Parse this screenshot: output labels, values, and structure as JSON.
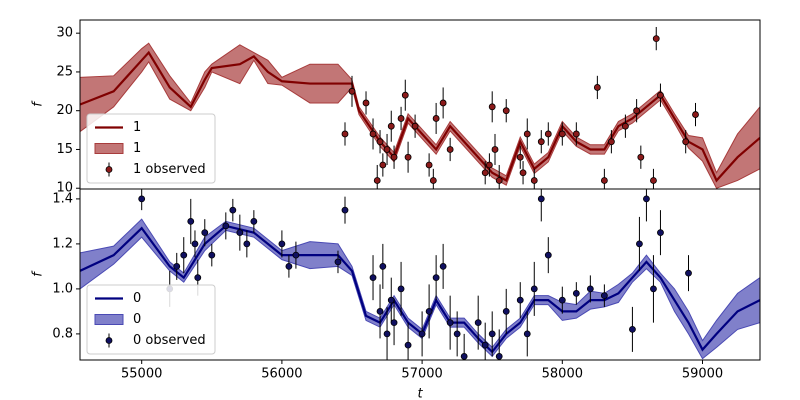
{
  "chart_data": [
    {
      "type": "line",
      "ylabel": "f",
      "legend": "lower left",
      "xlim": [
        54560,
        59410
      ],
      "ylim": [
        9.9,
        31.7
      ],
      "yticks": [
        10,
        15,
        20,
        25,
        30
      ],
      "x": [
        54560,
        54800,
        55000,
        55050,
        55200,
        55350,
        55450,
        55500,
        55700,
        55800,
        55900,
        56000,
        56200,
        56400,
        56500,
        56550,
        56700,
        56800,
        56900,
        57000,
        57100,
        57200,
        57300,
        57400,
        57500,
        57600,
        57700,
        57800,
        57900,
        58000,
        58100,
        58200,
        58300,
        58400,
        58500,
        58600,
        58700,
        58800,
        58900,
        59000,
        59100,
        59250,
        59410
      ],
      "series": [
        {
          "name": "1",
          "kind": "line",
          "color": "#800000",
          "values": [
            20.8,
            22.5,
            26.5,
            27.5,
            23,
            20.5,
            24,
            25.5,
            26,
            27,
            25,
            23.8,
            23.5,
            23.5,
            23.5,
            20,
            16,
            14,
            19,
            17,
            15,
            18,
            16,
            14,
            12,
            11,
            16,
            12.5,
            14,
            18,
            16,
            15,
            15,
            18,
            19,
            20.5,
            22,
            19,
            16,
            15,
            11,
            14,
            16.5
          ]
        },
        {
          "name": "1",
          "kind": "band",
          "color": "#a83c3c",
          "upper": [
            24.3,
            24.5,
            28,
            28.7,
            24.5,
            21,
            25,
            26,
            28.5,
            27.5,
            26.5,
            24.3,
            26,
            26,
            24,
            20.5,
            16.6,
            14.6,
            19.6,
            17.6,
            15.6,
            18.6,
            16.6,
            14.6,
            12.6,
            11.6,
            16.6,
            13.1,
            14.6,
            18.6,
            16.6,
            15.6,
            15.6,
            18.6,
            19.6,
            21.1,
            22.6,
            19.6,
            16.8,
            16.5,
            12,
            17,
            20.5
          ],
          "lower": [
            17.3,
            20.5,
            25,
            26.3,
            21.5,
            20,
            23,
            25,
            23.5,
            26.5,
            23.5,
            23.3,
            21,
            21,
            23,
            19.5,
            15.4,
            13.4,
            18.4,
            16.4,
            14.4,
            17.4,
            15.4,
            13.4,
            11.4,
            10.4,
            15.4,
            11.9,
            13.4,
            17.4,
            15.4,
            14.4,
            14.4,
            17.4,
            18.4,
            19.9,
            21.4,
            18.4,
            15.2,
            13.5,
            10,
            11,
            12.5
          ]
        },
        {
          "name": "1 observed",
          "kind": "errorbar",
          "color": "#8b1a1a",
          "x": [
            56450,
            56500,
            56600,
            56650,
            56680,
            56700,
            56720,
            56750,
            56780,
            56800,
            56850,
            56880,
            56900,
            56950,
            57050,
            57080,
            57100,
            57150,
            57200,
            57450,
            57480,
            57500,
            57520,
            57550,
            57600,
            57700,
            57720,
            57750,
            57800,
            57850,
            57900,
            58000,
            58100,
            58250,
            58300,
            58350,
            58450,
            58530,
            58560,
            58650,
            58670,
            58700,
            58880,
            58950
          ],
          "values": [
            17,
            22.5,
            21,
            17,
            11,
            16,
            13,
            15,
            18,
            14,
            19,
            22,
            14,
            18,
            13,
            11,
            19,
            21,
            15,
            12,
            13,
            20.5,
            15,
            11,
            20,
            14,
            12,
            17,
            11,
            16,
            17,
            17,
            17,
            23,
            11,
            16,
            18,
            20,
            14,
            11,
            29.3,
            22,
            16,
            19.5
          ],
          "errors": [
            1.5,
            2,
            1.5,
            2,
            2,
            1.5,
            1.5,
            2,
            2,
            1.5,
            1.5,
            2,
            2,
            1.5,
            1.5,
            1.5,
            2,
            2,
            1.5,
            1.5,
            1.5,
            2,
            2,
            2,
            1.5,
            1.5,
            1.5,
            2,
            1.5,
            1.5,
            1.5,
            1.5,
            1.5,
            1.5,
            1.5,
            1.5,
            1.5,
            1.5,
            1.5,
            1.5,
            1.5,
            1.5,
            1.5,
            1.5
          ]
        }
      ]
    },
    {
      "type": "line",
      "ylabel": "f",
      "xlabel": "t",
      "legend": "lower left",
      "xlim": [
        54560,
        59410
      ],
      "xticks": [
        55000,
        56000,
        57000,
        58000,
        59000
      ],
      "ylim": [
        0.684,
        1.444
      ],
      "yticks": [
        {
          "value": 0.8,
          "label": "0.8"
        },
        {
          "value": 1.0,
          "label": "1.0"
        },
        {
          "value": 1.2,
          "label": "1.2"
        },
        {
          "value": 1.4,
          "label": "1.4"
        }
      ],
      "x": [
        54560,
        54800,
        55000,
        55200,
        55300,
        55450,
        55600,
        55800,
        56000,
        56200,
        56400,
        56500,
        56600,
        56700,
        56800,
        56900,
        57000,
        57100,
        57200,
        57300,
        57400,
        57500,
        57600,
        57700,
        57800,
        57900,
        58000,
        58100,
        58200,
        58300,
        58400,
        58500,
        58600,
        58700,
        58800,
        58900,
        59000,
        59100,
        59250,
        59410
      ],
      "series": [
        {
          "name": "0",
          "kind": "line",
          "color": "#000080",
          "values": [
            1.08,
            1.15,
            1.27,
            1.1,
            1.05,
            1.2,
            1.28,
            1.25,
            1.15,
            1.15,
            1.15,
            1.08,
            0.88,
            0.85,
            0.95,
            0.85,
            0.8,
            0.95,
            0.85,
            0.85,
            0.78,
            0.72,
            0.8,
            0.85,
            0.95,
            0.95,
            0.9,
            0.9,
            0.95,
            0.95,
            0.98,
            1.05,
            1.12,
            1.05,
            0.95,
            0.85,
            0.73,
            0.8,
            0.9,
            0.95
          ]
        },
        {
          "name": "0",
          "kind": "band",
          "color": "#4a4ab4",
          "upper": [
            1.16,
            1.19,
            1.31,
            1.12,
            1.07,
            1.23,
            1.3,
            1.27,
            1.17,
            1.21,
            1.2,
            1.1,
            0.9,
            0.87,
            0.97,
            0.87,
            0.82,
            0.97,
            0.87,
            0.87,
            0.8,
            0.74,
            0.82,
            0.87,
            0.97,
            0.97,
            0.94,
            0.93,
            0.99,
            0.98,
            1.02,
            1.07,
            1.15,
            1.07,
            1.0,
            0.9,
            0.77,
            0.86,
            0.98,
            1.05
          ],
          "lower": [
            1.0,
            1.11,
            1.23,
            1.08,
            1.03,
            1.17,
            1.26,
            1.23,
            1.13,
            1.09,
            1.1,
            1.06,
            0.86,
            0.83,
            0.93,
            0.83,
            0.78,
            0.93,
            0.83,
            0.83,
            0.76,
            0.7,
            0.78,
            0.83,
            0.93,
            0.93,
            0.86,
            0.87,
            0.91,
            0.92,
            0.94,
            1.03,
            1.09,
            1.03,
            0.9,
            0.8,
            0.69,
            0.74,
            0.82,
            0.85
          ]
        },
        {
          "name": "0 observed",
          "kind": "errorbar",
          "color": "#101060",
          "x": [
            55000,
            55200,
            55250,
            55300,
            55350,
            55380,
            55400,
            55450,
            55500,
            55600,
            55650,
            55700,
            55750,
            55800,
            56000,
            56050,
            56100,
            56400,
            56450,
            56650,
            56700,
            56720,
            56750,
            56780,
            56800,
            56850,
            56900,
            57000,
            57050,
            57100,
            57150,
            57200,
            57250,
            57300,
            57400,
            57450,
            57500,
            57550,
            57600,
            57700,
            57750,
            57800,
            57850,
            57900,
            58000,
            58100,
            58200,
            58300,
            58500,
            58550,
            58600,
            58650,
            58700,
            58900
          ],
          "values": [
            1.4,
            1.0,
            1.1,
            1.15,
            1.3,
            1.2,
            1.05,
            1.25,
            1.15,
            1.28,
            1.35,
            1.25,
            1.2,
            1.3,
            1.2,
            1.1,
            1.15,
            1.12,
            1.35,
            1.05,
            0.9,
            1.1,
            0.8,
            0.95,
            0.85,
            1.0,
            0.75,
            0.8,
            0.9,
            1.05,
            1.1,
            0.85,
            0.8,
            0.7,
            0.85,
            0.75,
            0.8,
            0.7,
            0.9,
            0.95,
            0.8,
            1.0,
            1.4,
            1.15,
            0.95,
            0.98,
            1.0,
            0.97,
            0.82,
            1.2,
            1.4,
            1.0,
            1.25,
            1.07
          ],
          "errors": [
            0.05,
            0.08,
            0.06,
            0.08,
            0.1,
            0.06,
            0.08,
            0.06,
            0.05,
            0.06,
            0.05,
            0.08,
            0.06,
            0.05,
            0.06,
            0.05,
            0.06,
            0.05,
            0.06,
            0.1,
            0.12,
            0.1,
            0.12,
            0.1,
            0.1,
            0.12,
            0.1,
            0.1,
            0.12,
            0.1,
            0.1,
            0.12,
            0.1,
            0.1,
            0.12,
            0.1,
            0.1,
            0.12,
            0.1,
            0.08,
            0.1,
            0.12,
            0.1,
            0.08,
            0.06,
            0.05,
            0.06,
            0.05,
            0.1,
            0.12,
            0.1,
            0.15,
            0.1,
            0.08
          ]
        }
      ]
    }
  ]
}
